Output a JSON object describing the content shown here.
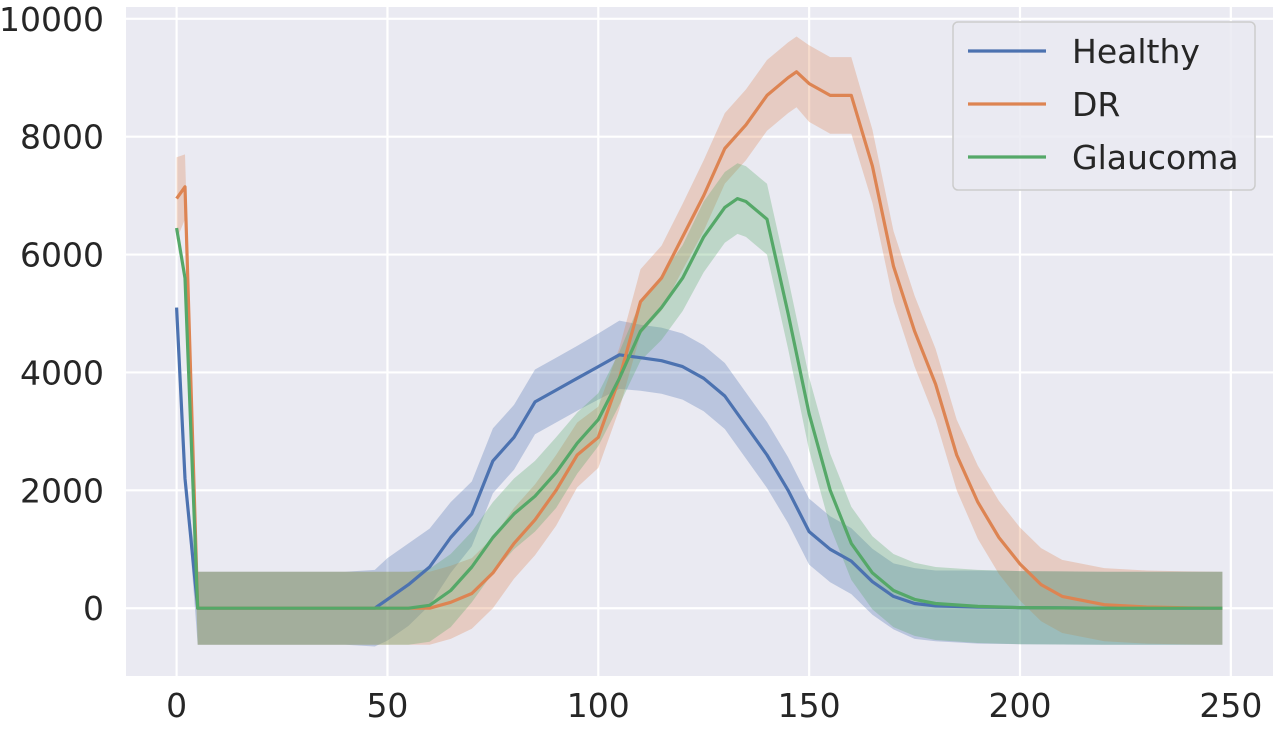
{
  "chart_data": {
    "type": "line",
    "title": "",
    "xlabel": "",
    "ylabel": "",
    "xlim": [
      -12,
      260
    ],
    "ylim": [
      -1150,
      10200
    ],
    "xticks": [
      0,
      50,
      100,
      150,
      200,
      250
    ],
    "yticks": [
      0,
      2000,
      4000,
      6000,
      8000,
      10000
    ],
    "grid": true,
    "legend_position": "top-right",
    "colors": {
      "background": "#eaeaf2",
      "grid": "#ffffff",
      "Healthy": "#4c72b0",
      "DR": "#dd8452",
      "Glaucoma": "#55a868"
    },
    "series": [
      {
        "name": "Healthy",
        "x": [
          0,
          2,
          5,
          10,
          20,
          30,
          40,
          47,
          50,
          55,
          60,
          65,
          70,
          75,
          80,
          85,
          90,
          95,
          100,
          105,
          110,
          115,
          120,
          125,
          130,
          135,
          140,
          145,
          150,
          155,
          160,
          165,
          170,
          175,
          180,
          190,
          200,
          210,
          220,
          230,
          240,
          248
        ],
        "y": [
          5100,
          2200,
          0,
          0,
          0,
          0,
          0,
          0,
          150,
          400,
          700,
          1200,
          1600,
          2500,
          2900,
          3500,
          3700,
          3900,
          4100,
          4300,
          4250,
          4200,
          4100,
          3900,
          3600,
          3100,
          2600,
          2000,
          1300,
          1000,
          800,
          450,
          200,
          80,
          40,
          20,
          10,
          5,
          0,
          0,
          0,
          0
        ],
        "band": [
          0,
          0,
          620,
          620,
          620,
          620,
          620,
          650,
          700,
          700,
          650,
          600,
          550,
          550,
          550,
          550,
          550,
          550,
          560,
          580,
          560,
          560,
          560,
          560,
          560,
          560,
          560,
          560,
          560,
          560,
          560,
          560,
          560,
          600,
          600,
          620,
          620,
          620,
          620,
          620,
          620,
          620
        ]
      },
      {
        "name": "DR",
        "x": [
          0,
          2,
          5,
          10,
          20,
          30,
          40,
          50,
          55,
          60,
          65,
          70,
          75,
          80,
          85,
          90,
          95,
          100,
          105,
          110,
          115,
          120,
          125,
          130,
          135,
          140,
          145,
          147,
          150,
          155,
          160,
          165,
          170,
          175,
          180,
          185,
          190,
          195,
          200,
          205,
          210,
          220,
          230,
          240,
          248
        ],
        "y": [
          6950,
          7150,
          0,
          0,
          0,
          0,
          0,
          0,
          0,
          0,
          100,
          250,
          600,
          1100,
          1500,
          2000,
          2600,
          2900,
          3900,
          5200,
          5600,
          6300,
          7000,
          7800,
          8200,
          8700,
          9000,
          9100,
          8900,
          8700,
          8700,
          7500,
          5800,
          4700,
          3800,
          2600,
          1800,
          1200,
          750,
          400,
          200,
          60,
          20,
          5,
          0
        ],
        "band": [
          700,
          550,
          620,
          620,
          620,
          620,
          620,
          620,
          620,
          620,
          620,
          600,
          600,
          600,
          600,
          600,
          550,
          520,
          520,
          550,
          550,
          560,
          600,
          600,
          600,
          600,
          600,
          600,
          650,
          650,
          650,
          620,
          600,
          600,
          600,
          600,
          620,
          620,
          620,
          620,
          620,
          620,
          620,
          620,
          620
        ]
      },
      {
        "name": "Glaucoma",
        "x": [
          0,
          2,
          5,
          10,
          20,
          30,
          40,
          50,
          55,
          60,
          65,
          70,
          75,
          80,
          85,
          90,
          95,
          100,
          105,
          110,
          115,
          120,
          125,
          130,
          133,
          135,
          140,
          145,
          150,
          155,
          160,
          165,
          170,
          175,
          180,
          190,
          200,
          210,
          220,
          230,
          240,
          248
        ],
        "y": [
          6450,
          5600,
          0,
          0,
          0,
          0,
          0,
          0,
          0,
          50,
          300,
          700,
          1200,
          1600,
          1900,
          2300,
          2800,
          3200,
          3900,
          4700,
          5100,
          5600,
          6300,
          6800,
          6950,
          6900,
          6600,
          5000,
          3300,
          2000,
          1100,
          600,
          300,
          150,
          80,
          30,
          10,
          5,
          0,
          0,
          0,
          0
        ],
        "band": [
          0,
          0,
          620,
          620,
          620,
          620,
          620,
          620,
          620,
          620,
          620,
          600,
          600,
          600,
          600,
          600,
          520,
          450,
          450,
          500,
          550,
          560,
          600,
          600,
          600,
          600,
          600,
          600,
          620,
          620,
          620,
          620,
          620,
          620,
          620,
          620,
          620,
          620,
          620,
          620,
          620,
          620
        ]
      }
    ]
  }
}
